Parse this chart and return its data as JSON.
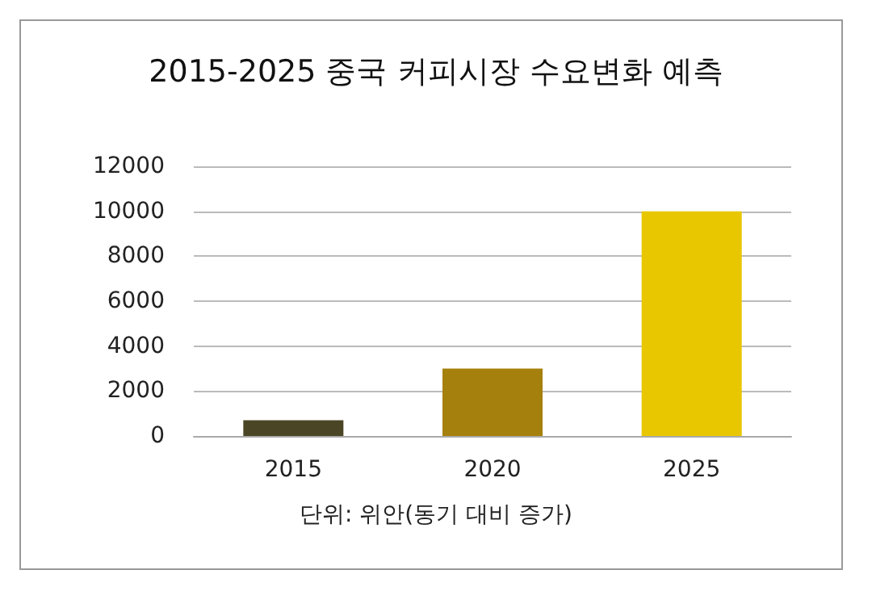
{
  "chart_data": {
    "type": "bar",
    "title": "2015-2025 중국 커피시장 수요변화 예측",
    "categories": [
      "2015",
      "2020",
      "2025"
    ],
    "values": [
      700,
      3000,
      10000
    ],
    "colors": [
      "#4a4524",
      "#a6800c",
      "#e8c700"
    ],
    "ylim": [
      0,
      12000
    ],
    "yticks": [
      0,
      2000,
      4000,
      6000,
      8000,
      10000,
      12000
    ],
    "grid": "y",
    "annotations": [
      "단위: 위안(동기 대비 증가)"
    ]
  }
}
